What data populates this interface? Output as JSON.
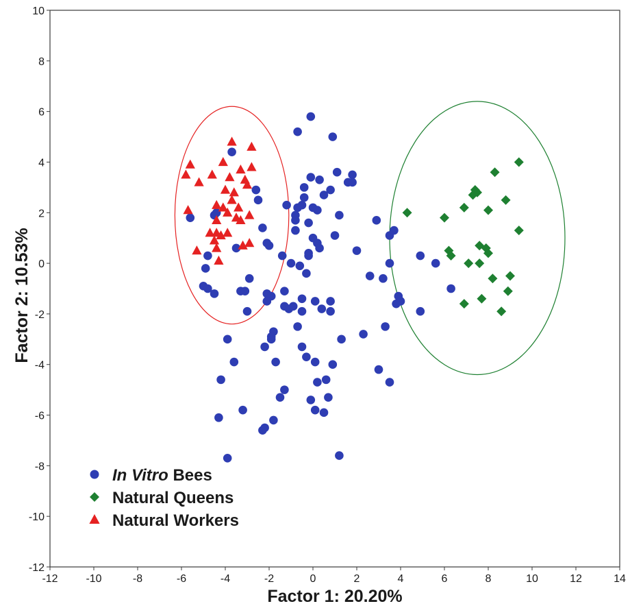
{
  "colors": {
    "invitro": "#2e3db3",
    "queens": "#1e8031",
    "workers": "#e52222",
    "frame": "#3a3a3a"
  },
  "chart_data": {
    "type": "scatter",
    "title": "",
    "xlabel": "Factor 1: 20.20%",
    "ylabel": "Factor 2: 10.53%",
    "xlim": [
      -12,
      14
    ],
    "ylim": [
      -12,
      10
    ],
    "xticks": [
      -12,
      -10,
      -8,
      -6,
      -4,
      -2,
      0,
      2,
      4,
      6,
      8,
      10,
      12,
      14
    ],
    "yticks": [
      -12,
      -10,
      -8,
      -6,
      -4,
      -2,
      0,
      2,
      4,
      6,
      8,
      10
    ],
    "grid": false,
    "legend_position": "bottom-left",
    "series": [
      {
        "key": "invitro",
        "name_italic": "In Vitro",
        "name_rest": " Bees",
        "marker": "circle",
        "color": "#2e3db3",
        "points": [
          [
            -5.6,
            1.8
          ],
          [
            -4.5,
            1.9
          ],
          [
            -3.7,
            4.4
          ],
          [
            -2.6,
            2.9
          ],
          [
            -2.5,
            2.5
          ],
          [
            -2.3,
            1.4
          ],
          [
            -2.1,
            0.8
          ],
          [
            -2.0,
            0.7
          ],
          [
            -3.5,
            0.6
          ],
          [
            -4.4,
            2.0
          ],
          [
            -4.8,
            0.3
          ],
          [
            -4.9,
            -0.2
          ],
          [
            -5.0,
            -0.9
          ],
          [
            -4.8,
            -1.0
          ],
          [
            -4.5,
            -1.2
          ],
          [
            -3.3,
            -1.1
          ],
          [
            -3.1,
            -1.1
          ],
          [
            -2.9,
            -0.6
          ],
          [
            -2.1,
            -1.2
          ],
          [
            -1.9,
            -1.3
          ],
          [
            -2.1,
            -1.5
          ],
          [
            -1.4,
            0.3
          ],
          [
            -1.0,
            0.0
          ],
          [
            -0.6,
            -0.1
          ],
          [
            -0.2,
            0.4
          ],
          [
            -0.3,
            -0.4
          ],
          [
            -1.3,
            -1.1
          ],
          [
            -1.3,
            -1.7
          ],
          [
            -1.1,
            -1.8
          ],
          [
            -0.9,
            -1.7
          ],
          [
            -0.5,
            -1.4
          ],
          [
            -0.5,
            -1.9
          ],
          [
            -0.7,
            -2.5
          ],
          [
            -0.5,
            -3.3
          ],
          [
            -0.3,
            -3.7
          ],
          [
            0.1,
            -3.9
          ],
          [
            0.2,
            -4.7
          ],
          [
            0.6,
            -4.6
          ],
          [
            0.9,
            -4.0
          ],
          [
            0.7,
            -5.3
          ],
          [
            -0.1,
            -5.4
          ],
          [
            0.1,
            -5.8
          ],
          [
            0.5,
            -5.9
          ],
          [
            -1.3,
            -5.0
          ],
          [
            -1.5,
            -5.3
          ],
          [
            -1.7,
            -3.9
          ],
          [
            -1.9,
            -3.0
          ],
          [
            -1.8,
            -2.7
          ],
          [
            -1.9,
            -2.9
          ],
          [
            -2.2,
            -3.3
          ],
          [
            -3.0,
            -1.9
          ],
          [
            -3.9,
            -3.0
          ],
          [
            -3.6,
            -3.9
          ],
          [
            -4.2,
            -4.6
          ],
          [
            -4.3,
            -6.1
          ],
          [
            -3.2,
            -5.8
          ],
          [
            -2.3,
            -6.6
          ],
          [
            -2.2,
            -6.5
          ],
          [
            -1.8,
            -6.2
          ],
          [
            -3.9,
            -7.7
          ],
          [
            1.2,
            -7.6
          ],
          [
            0.1,
            -1.5
          ],
          [
            0.4,
            -1.8
          ],
          [
            0.8,
            -1.9
          ],
          [
            0.8,
            -1.5
          ],
          [
            1.3,
            -3.0
          ],
          [
            2.3,
            -2.8
          ],
          [
            3.0,
            -4.2
          ],
          [
            3.5,
            -4.7
          ],
          [
            3.3,
            -2.5
          ],
          [
            3.2,
            -0.6
          ],
          [
            2.6,
            -0.5
          ],
          [
            2.0,
            0.5
          ],
          [
            3.5,
            0.0
          ],
          [
            3.5,
            1.1
          ],
          [
            3.7,
            1.3
          ],
          [
            2.9,
            1.7
          ],
          [
            3.9,
            -1.3
          ],
          [
            4.0,
            -1.5
          ],
          [
            3.8,
            -1.6
          ],
          [
            4.9,
            -1.9
          ],
          [
            4.9,
            0.3
          ],
          [
            5.6,
            0.0
          ],
          [
            6.3,
            -1.0
          ],
          [
            -0.1,
            5.8
          ],
          [
            -0.7,
            5.2
          ],
          [
            0.9,
            5.0
          ],
          [
            -0.4,
            3.0
          ],
          [
            -0.1,
            3.4
          ],
          [
            0.3,
            3.3
          ],
          [
            1.1,
            3.6
          ],
          [
            1.6,
            3.2
          ],
          [
            1.8,
            3.5
          ],
          [
            1.8,
            3.2
          ],
          [
            0.8,
            2.9
          ],
          [
            0.5,
            2.7
          ],
          [
            -0.4,
            2.6
          ],
          [
            -0.5,
            2.3
          ],
          [
            -0.7,
            2.2
          ],
          [
            0.0,
            2.2
          ],
          [
            0.2,
            2.1
          ],
          [
            -1.2,
            2.3
          ],
          [
            -0.8,
            1.9
          ],
          [
            -0.8,
            1.7
          ],
          [
            -0.2,
            1.6
          ],
          [
            -0.8,
            1.3
          ],
          [
            1.2,
            1.9
          ],
          [
            0.0,
            1.0
          ],
          [
            1.0,
            1.1
          ],
          [
            0.2,
            0.8
          ],
          [
            0.3,
            0.6
          ],
          [
            -0.2,
            0.3
          ]
        ]
      },
      {
        "key": "queens",
        "name": "Natural Queens",
        "marker": "diamond",
        "color": "#1e8031",
        "points": [
          [
            9.4,
            4.0
          ],
          [
            8.3,
            3.6
          ],
          [
            7.4,
            2.9
          ],
          [
            7.5,
            2.8
          ],
          [
            7.3,
            2.7
          ],
          [
            6.9,
            2.2
          ],
          [
            8.8,
            2.5
          ],
          [
            8.0,
            2.1
          ],
          [
            4.3,
            2.0
          ],
          [
            6.0,
            1.8
          ],
          [
            9.4,
            1.3
          ],
          [
            7.6,
            0.7
          ],
          [
            7.9,
            0.6
          ],
          [
            8.0,
            0.4
          ],
          [
            6.2,
            0.5
          ],
          [
            6.3,
            0.3
          ],
          [
            7.1,
            0.0
          ],
          [
            7.6,
            0.0
          ],
          [
            8.2,
            -0.6
          ],
          [
            9.0,
            -0.5
          ],
          [
            8.9,
            -1.1
          ],
          [
            7.7,
            -1.4
          ],
          [
            6.9,
            -1.6
          ],
          [
            8.6,
            -1.9
          ]
        ]
      },
      {
        "key": "workers",
        "name": "Natural Workers",
        "marker": "triangle",
        "color": "#e52222",
        "points": [
          [
            -3.7,
            4.8
          ],
          [
            -2.8,
            4.6
          ],
          [
            -5.6,
            3.9
          ],
          [
            -4.1,
            4.0
          ],
          [
            -3.3,
            3.7
          ],
          [
            -2.8,
            3.8
          ],
          [
            -5.8,
            3.5
          ],
          [
            -5.2,
            3.2
          ],
          [
            -4.6,
            3.5
          ],
          [
            -3.8,
            3.4
          ],
          [
            -3.1,
            3.3
          ],
          [
            -3.0,
            3.1
          ],
          [
            -4.0,
            2.9
          ],
          [
            -3.6,
            2.8
          ],
          [
            -3.7,
            2.5
          ],
          [
            -4.4,
            2.3
          ],
          [
            -4.1,
            2.2
          ],
          [
            -3.9,
            2.0
          ],
          [
            -3.4,
            2.2
          ],
          [
            -5.7,
            2.1
          ],
          [
            -3.5,
            1.8
          ],
          [
            -3.3,
            1.7
          ],
          [
            -2.9,
            1.9
          ],
          [
            -4.4,
            1.7
          ],
          [
            -3.9,
            1.2
          ],
          [
            -4.7,
            1.2
          ],
          [
            -4.4,
            1.2
          ],
          [
            -4.2,
            1.1
          ],
          [
            -4.5,
            0.9
          ],
          [
            -4.4,
            0.6
          ],
          [
            -5.3,
            0.5
          ],
          [
            -3.2,
            0.7
          ],
          [
            -2.9,
            0.8
          ],
          [
            -4.3,
            0.1
          ]
        ]
      }
    ],
    "ellipses": [
      {
        "series": "workers",
        "cx": -3.7,
        "cy": 1.9,
        "rx": 2.6,
        "ry": 4.3,
        "color": "#e52222"
      },
      {
        "series": "queens",
        "cx": 7.5,
        "cy": 1.0,
        "rx": 4.0,
        "ry": 5.4,
        "color": "#1e8031"
      }
    ]
  }
}
